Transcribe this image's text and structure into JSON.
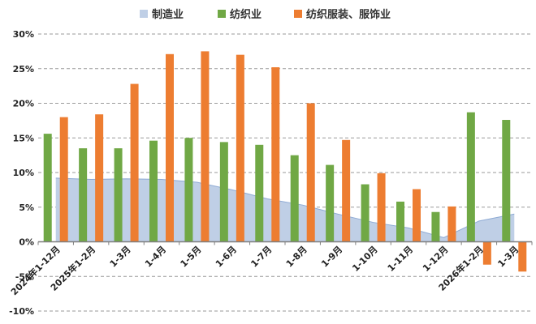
{
  "chart_data": {
    "type": "bar",
    "title": "",
    "xlabel": "",
    "ylabel": "",
    "ylim": [
      -10,
      30
    ],
    "yticks": [
      -10,
      -5,
      0,
      5,
      10,
      15,
      20,
      25,
      30
    ],
    "ytick_labels": [
      "-10%",
      "-5%",
      "0%",
      "5%",
      "10%",
      "15%",
      "20%",
      "25%",
      "30%"
    ],
    "grid": true,
    "legend_position": "top",
    "categories": [
      "2024年1-12月",
      "2025年1-2月",
      "1-3月",
      "1-4月",
      "1-5月",
      "1-6月",
      "1-7月",
      "1-8月",
      "1-9月",
      "1-10月",
      "1-11月",
      "1-12月",
      "2026年1-2月",
      "1-3月"
    ],
    "series": [
      {
        "name": "制造业",
        "kind": "area",
        "color": "#bfcfe6",
        "stroke": "#8eaad4",
        "values": [
          9.2,
          9.0,
          9.1,
          9.0,
          8.6,
          7.5,
          6.2,
          5.3,
          4.0,
          2.8,
          2.0,
          0.6,
          3.0,
          4.0
        ]
      },
      {
        "name": "纺织业",
        "kind": "bar",
        "color": "#70a845",
        "values": [
          15.6,
          13.5,
          13.5,
          14.6,
          15.0,
          14.4,
          14.0,
          12.5,
          11.1,
          8.3,
          5.8,
          4.3,
          18.7,
          17.6
        ]
      },
      {
        "name": "纺织服装、服饰业",
        "kind": "bar",
        "color": "#ed7d31",
        "values": [
          18.0,
          18.4,
          22.8,
          27.1,
          27.5,
          27.0,
          25.2,
          20.0,
          14.7,
          9.9,
          7.6,
          5.1,
          -3.3,
          -4.3
        ]
      }
    ]
  }
}
